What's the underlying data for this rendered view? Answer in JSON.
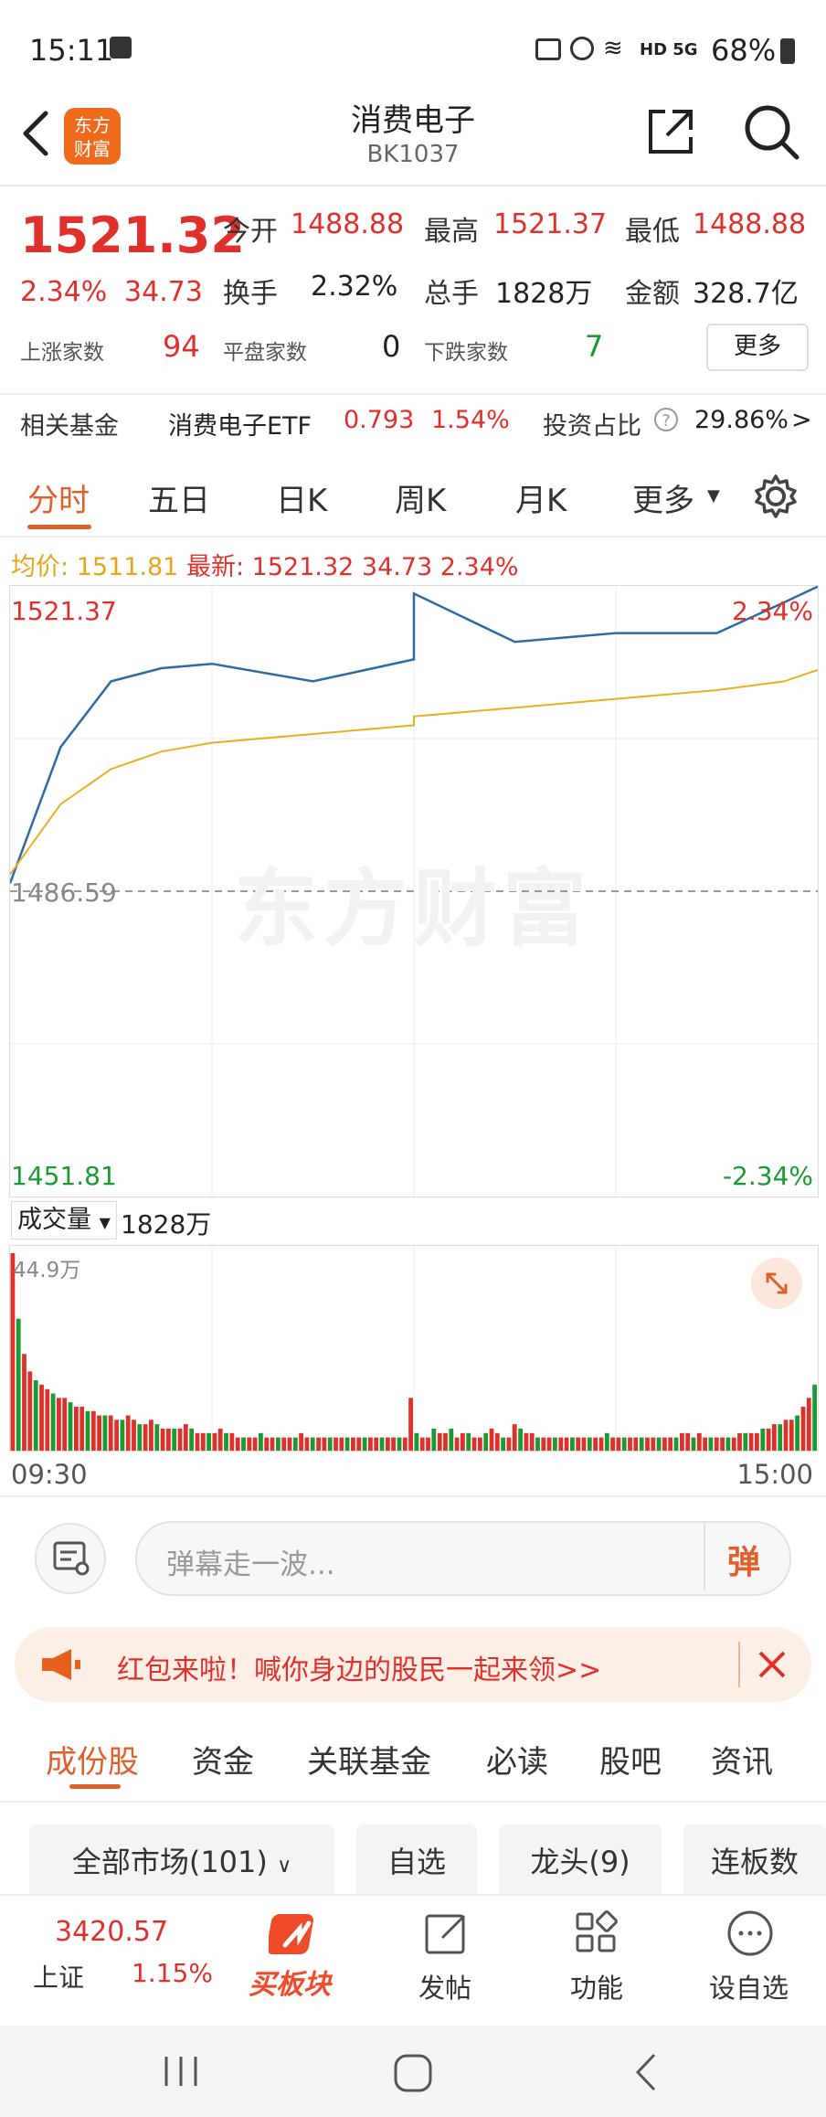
{
  "status_bar": {
    "time": "15:11",
    "battery": "68%",
    "signal_text": "HD 5G"
  },
  "header": {
    "title": "消费电子",
    "code": "BK1037",
    "logo_line1": "东方",
    "logo_line2": "财富"
  },
  "quote": {
    "price": "1521.32",
    "change_pct": "2.34%",
    "change_val": "34.73",
    "open_label": "今开",
    "open": "1488.88",
    "high_label": "最高",
    "high": "1521.37",
    "low_label": "最低",
    "low": "1488.88",
    "turnover_label": "换手",
    "turnover": "2.32%",
    "volume_label": "总手",
    "volume": "1828万",
    "amount_label": "金额",
    "amount": "328.7亿",
    "up_label": "上涨家数",
    "up_count": "94",
    "flat_label": "平盘家数",
    "flat_count": "0",
    "down_label": "下跌家数",
    "down_count": "7",
    "more_label": "更多"
  },
  "fund": {
    "label": "相关基金",
    "name": "消费电子ETF",
    "price": "0.793",
    "pct": "1.54%",
    "ratio_label": "投资占比",
    "ratio": "29.86%",
    "arrow": ">"
  },
  "chart_tabs": [
    "分时",
    "五日",
    "日K",
    "周K",
    "月K",
    "更多"
  ],
  "avg_bar": {
    "avg_label": "均价:",
    "avg": "1511.81",
    "latest_label": "最新:",
    "latest": "1521.32",
    "change": "34.73",
    "pct": "2.34%"
  },
  "chart_labels": {
    "top_price": "1521.37",
    "top_pct": "2.34%",
    "mid_price": "1486.59",
    "bottom_price": "1451.81",
    "bottom_pct": "-2.34%",
    "watermark": "东方财富",
    "vol_label": "成交量",
    "vol_value": "1828万",
    "vol_max": "44.9万",
    "time_start": "09:30",
    "time_end": "15:00"
  },
  "chart_data": {
    "type": "line",
    "series": [
      {
        "name": "最新",
        "x": [
          "09:30",
          "09:45",
          "10:00",
          "10:15",
          "10:30",
          "11:00",
          "11:30",
          "13:00",
          "13:30",
          "14:00",
          "14:30",
          "14:50",
          "15:00"
        ],
        "values": [
          1487.5,
          1503.0,
          1510.5,
          1512.0,
          1512.5,
          1510.5,
          1513.0,
          1520.5,
          1515.0,
          1516.0,
          1516.0,
          1519.5,
          1521.3
        ]
      },
      {
        "name": "均价",
        "x": [
          "09:30",
          "09:45",
          "10:00",
          "10:15",
          "10:30",
          "11:00",
          "11:30",
          "13:00",
          "13:30",
          "14:00",
          "14:30",
          "14:50",
          "15:00"
        ],
        "values": [
          1488.5,
          1496.5,
          1500.5,
          1502.5,
          1503.5,
          1504.5,
          1505.5,
          1506.5,
          1507.5,
          1508.5,
          1509.5,
          1510.5,
          1511.8
        ]
      }
    ],
    "ylim": [
      1451.81,
      1521.37
    ],
    "volume": {
      "max": "44.9万",
      "bars": [
        44.9,
        30,
        22,
        18,
        16,
        15,
        14,
        13,
        12,
        12,
        11,
        10,
        10,
        9,
        9,
        8,
        8,
        8,
        7,
        7,
        8,
        7,
        6,
        6,
        7,
        6,
        5,
        5,
        5,
        5,
        6,
        5,
        4,
        4,
        4,
        4,
        5,
        4,
        4,
        3,
        3,
        3,
        3,
        4,
        3,
        3,
        3,
        3,
        3,
        3,
        4,
        3,
        3,
        3,
        3,
        3,
        3,
        3,
        3,
        3,
        3,
        3,
        3,
        3,
        3,
        3,
        3,
        3,
        3,
        12,
        4,
        3,
        3,
        5,
        4,
        4,
        5,
        3,
        4,
        4,
        3,
        3,
        4,
        5,
        4,
        3,
        3,
        6,
        5,
        4,
        4,
        3,
        3,
        3,
        3,
        3,
        3,
        3,
        3,
        3,
        3,
        3,
        3,
        4,
        3,
        3,
        3,
        3,
        3,
        3,
        3,
        3,
        3,
        3,
        3,
        3,
        4,
        4,
        3,
        4,
        3,
        3,
        3,
        3,
        3,
        3,
        4,
        4,
        4,
        4,
        5,
        5,
        6,
        6,
        7,
        7,
        8,
        10,
        12,
        15
      ]
    }
  },
  "danmu": {
    "placeholder": "弹幕走一波...",
    "btn": "弹"
  },
  "banner": {
    "text": "红包来啦！喊你身边的股民一起来领>>"
  },
  "sub_tabs": [
    "成份股",
    "资金",
    "关联基金",
    "必读",
    "股吧",
    "资讯"
  ],
  "filters": [
    "全部市场(101)",
    "自选",
    "龙头(9)",
    "连板数"
  ],
  "bottom_bar": {
    "index_value": "3420.57",
    "index_name": "上证",
    "index_pct": "1.15%",
    "buy_label": "买板块",
    "post_label": "发帖",
    "func_label": "功能",
    "watch_label": "设自选"
  }
}
